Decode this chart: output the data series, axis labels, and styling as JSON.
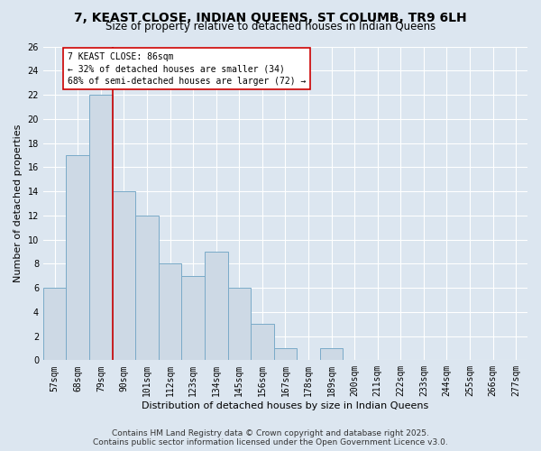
{
  "title": "7, KEAST CLOSE, INDIAN QUEENS, ST COLUMB, TR9 6LH",
  "subtitle": "Size of property relative to detached houses in Indian Queens",
  "xlabel": "Distribution of detached houses by size in Indian Queens",
  "ylabel": "Number of detached properties",
  "footer_line1": "Contains HM Land Registry data © Crown copyright and database right 2025.",
  "footer_line2": "Contains public sector information licensed under the Open Government Licence v3.0.",
  "categories": [
    "57sqm",
    "68sqm",
    "79sqm",
    "90sqm",
    "101sqm",
    "112sqm",
    "123sqm",
    "134sqm",
    "145sqm",
    "156sqm",
    "167sqm",
    "178sqm",
    "189sqm",
    "200sqm",
    "211sqm",
    "222sqm",
    "233sqm",
    "244sqm",
    "255sqm",
    "266sqm",
    "277sqm"
  ],
  "values": [
    6,
    17,
    22,
    14,
    12,
    8,
    7,
    9,
    6,
    3,
    1,
    0,
    1,
    0,
    0,
    0,
    0,
    0,
    0,
    0,
    0
  ],
  "bar_color": "#cdd9e5",
  "bar_edge_color": "#7aaac8",
  "vline_color": "#cc0000",
  "vline_x_index": 2,
  "annotation_text": "7 KEAST CLOSE: 86sqm\n← 32% of detached houses are smaller (34)\n68% of semi-detached houses are larger (72) →",
  "annotation_box_facecolor": "white",
  "annotation_box_edgecolor": "#cc0000",
  "ylim": [
    0,
    26
  ],
  "yticks": [
    0,
    2,
    4,
    6,
    8,
    10,
    12,
    14,
    16,
    18,
    20,
    22,
    24,
    26
  ],
  "background_color": "#dce6f0",
  "plot_bg_color": "#dce6f0",
  "grid_color": "white",
  "title_fontsize": 10,
  "subtitle_fontsize": 8.5,
  "xlabel_fontsize": 8,
  "ylabel_fontsize": 8,
  "tick_fontsize": 7,
  "annotation_fontsize": 7,
  "footer_fontsize": 6.5
}
